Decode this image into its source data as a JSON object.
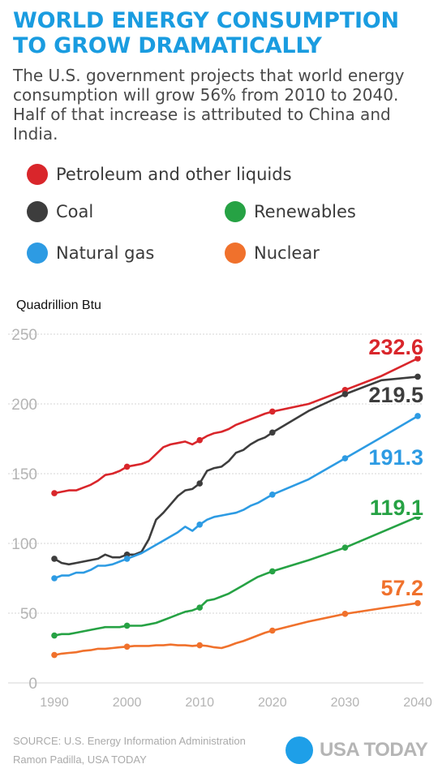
{
  "header": {
    "title_line1": "WORLD ENERGY CONSUMPTION",
    "title_line2": "TO GROW DRAMATICALLY",
    "subtitle": "The U.S. government projects that world energy consumption will grow 56% from 2010 to 2040. Half of that increase is attributed to China and India."
  },
  "legend": {
    "petroleum": "Petroleum and other liquids",
    "coal": "Coal",
    "renewables": "Renewables",
    "natural_gas": "Natural gas",
    "nuclear": "Nuclear"
  },
  "colors": {
    "title": "#1a9ce0",
    "petroleum": "#d9262b",
    "coal": "#3d3d3d",
    "natural_gas": "#2d9be3",
    "renewables": "#26a244",
    "nuclear": "#f0712c",
    "brand_dot": "#1e9fe8"
  },
  "footer": {
    "source": "SOURCE: U.S. Energy Information Administration",
    "credit": "Ramon Padilla, USA TODAY",
    "brand": "USA TODAY"
  },
  "chart_data": {
    "type": "line",
    "title": "",
    "xlabel": "",
    "ylabel": "Quadrillion Btu",
    "xlim": [
      1990,
      2040
    ],
    "ylim": [
      0,
      250
    ],
    "x_ticks": [
      1990,
      2000,
      2010,
      2020,
      2030,
      2040
    ],
    "y_ticks": [
      0,
      50,
      100,
      150,
      200,
      250
    ],
    "grid": true,
    "legend_position": "top",
    "series": [
      {
        "name": "Petroleum and other liquids",
        "color_key": "petroleum",
        "end_label": "232.6",
        "x": [
          1990,
          1991,
          1992,
          1993,
          1994,
          1995,
          1996,
          1997,
          1998,
          1999,
          2000,
          2001,
          2002,
          2003,
          2004,
          2005,
          2006,
          2007,
          2008,
          2009,
          2010,
          2011,
          2012,
          2013,
          2014,
          2015,
          2016,
          2017,
          2018,
          2019,
          2020,
          2025,
          2030,
          2035,
          2040
        ],
        "y": [
          136,
          137,
          138,
          138,
          140,
          142,
          145,
          149,
          150,
          152,
          155,
          156,
          157,
          159,
          164,
          169,
          171,
          172,
          173,
          171,
          174,
          177,
          179,
          180,
          182,
          185,
          187,
          189,
          191,
          193,
          194.5,
          200,
          210,
          220,
          232.6
        ],
        "markers": [
          1990,
          2000,
          2010,
          2020,
          2030,
          2040
        ]
      },
      {
        "name": "Coal",
        "color_key": "coal",
        "end_label": "219.5",
        "x": [
          1990,
          1991,
          1992,
          1993,
          1994,
          1995,
          1996,
          1997,
          1998,
          1999,
          2000,
          2001,
          2002,
          2003,
          2004,
          2005,
          2006,
          2007,
          2008,
          2009,
          2010,
          2011,
          2012,
          2013,
          2014,
          2015,
          2016,
          2017,
          2018,
          2019,
          2020,
          2025,
          2030,
          2035,
          2040
        ],
        "y": [
          89,
          86,
          85,
          86,
          87,
          88,
          89,
          92,
          90,
          90,
          92,
          92,
          94,
          103,
          117,
          122,
          128,
          134,
          138,
          139,
          143,
          152,
          154,
          155,
          159,
          165,
          167,
          171,
          174,
          176,
          179.5,
          195,
          207,
          217,
          219.5
        ],
        "markers": [
          1990,
          2000,
          2010,
          2020,
          2030,
          2040
        ]
      },
      {
        "name": "Natural gas",
        "color_key": "natural_gas",
        "end_label": "191.3",
        "x": [
          1990,
          1991,
          1992,
          1993,
          1994,
          1995,
          1996,
          1997,
          1998,
          1999,
          2000,
          2001,
          2002,
          2003,
          2004,
          2005,
          2006,
          2007,
          2008,
          2009,
          2010,
          2011,
          2012,
          2013,
          2014,
          2015,
          2016,
          2017,
          2018,
          2019,
          2020,
          2025,
          2030,
          2035,
          2040
        ],
        "y": [
          75,
          77,
          77,
          79,
          79,
          81,
          84,
          84,
          85,
          87,
          89,
          91,
          93,
          96,
          99,
          102,
          105,
          108,
          112,
          109,
          113.5,
          117,
          119,
          120,
          121,
          122,
          124,
          127,
          129,
          132,
          135,
          146,
          161,
          176,
          191.3
        ],
        "markers": [
          1990,
          2000,
          2010,
          2020,
          2030,
          2040
        ]
      },
      {
        "name": "Renewables",
        "color_key": "renewables",
        "end_label": "119.1",
        "x": [
          1990,
          1991,
          1992,
          1993,
          1994,
          1995,
          1996,
          1997,
          1998,
          1999,
          2000,
          2001,
          2002,
          2003,
          2004,
          2005,
          2006,
          2007,
          2008,
          2009,
          2010,
          2011,
          2012,
          2013,
          2014,
          2015,
          2016,
          2017,
          2018,
          2019,
          2020,
          2025,
          2030,
          2035,
          2040
        ],
        "y": [
          34,
          35,
          35,
          36,
          37,
          38,
          39,
          40,
          40,
          40,
          41,
          41,
          41,
          42,
          43,
          45,
          47,
          49,
          51,
          52,
          54,
          59,
          60,
          62,
          64,
          67,
          70,
          73,
          76,
          78,
          80,
          88,
          97,
          108,
          119.1
        ],
        "markers": [
          1990,
          2000,
          2010,
          2020,
          2030,
          2040
        ]
      },
      {
        "name": "Nuclear",
        "color_key": "nuclear",
        "end_label": "57.2",
        "x": [
          1990,
          1991,
          1992,
          1993,
          1994,
          1995,
          1996,
          1997,
          1998,
          1999,
          2000,
          2001,
          2002,
          2003,
          2004,
          2005,
          2006,
          2007,
          2008,
          2009,
          2010,
          2011,
          2012,
          2013,
          2014,
          2015,
          2016,
          2017,
          2018,
          2019,
          2020,
          2025,
          2030,
          2035,
          2040
        ],
        "y": [
          20,
          21,
          21.5,
          22,
          23,
          23.5,
          24.5,
          24.5,
          25,
          25.5,
          26,
          26.5,
          26.5,
          26.5,
          27,
          27,
          27.5,
          27,
          27,
          26.5,
          27,
          26.5,
          25.5,
          25,
          26.5,
          28.5,
          30,
          32,
          34,
          36,
          37.5,
          44,
          49.5,
          53.5,
          57.2
        ],
        "markers": [
          1990,
          2000,
          2010,
          2020,
          2030,
          2040
        ]
      }
    ]
  }
}
